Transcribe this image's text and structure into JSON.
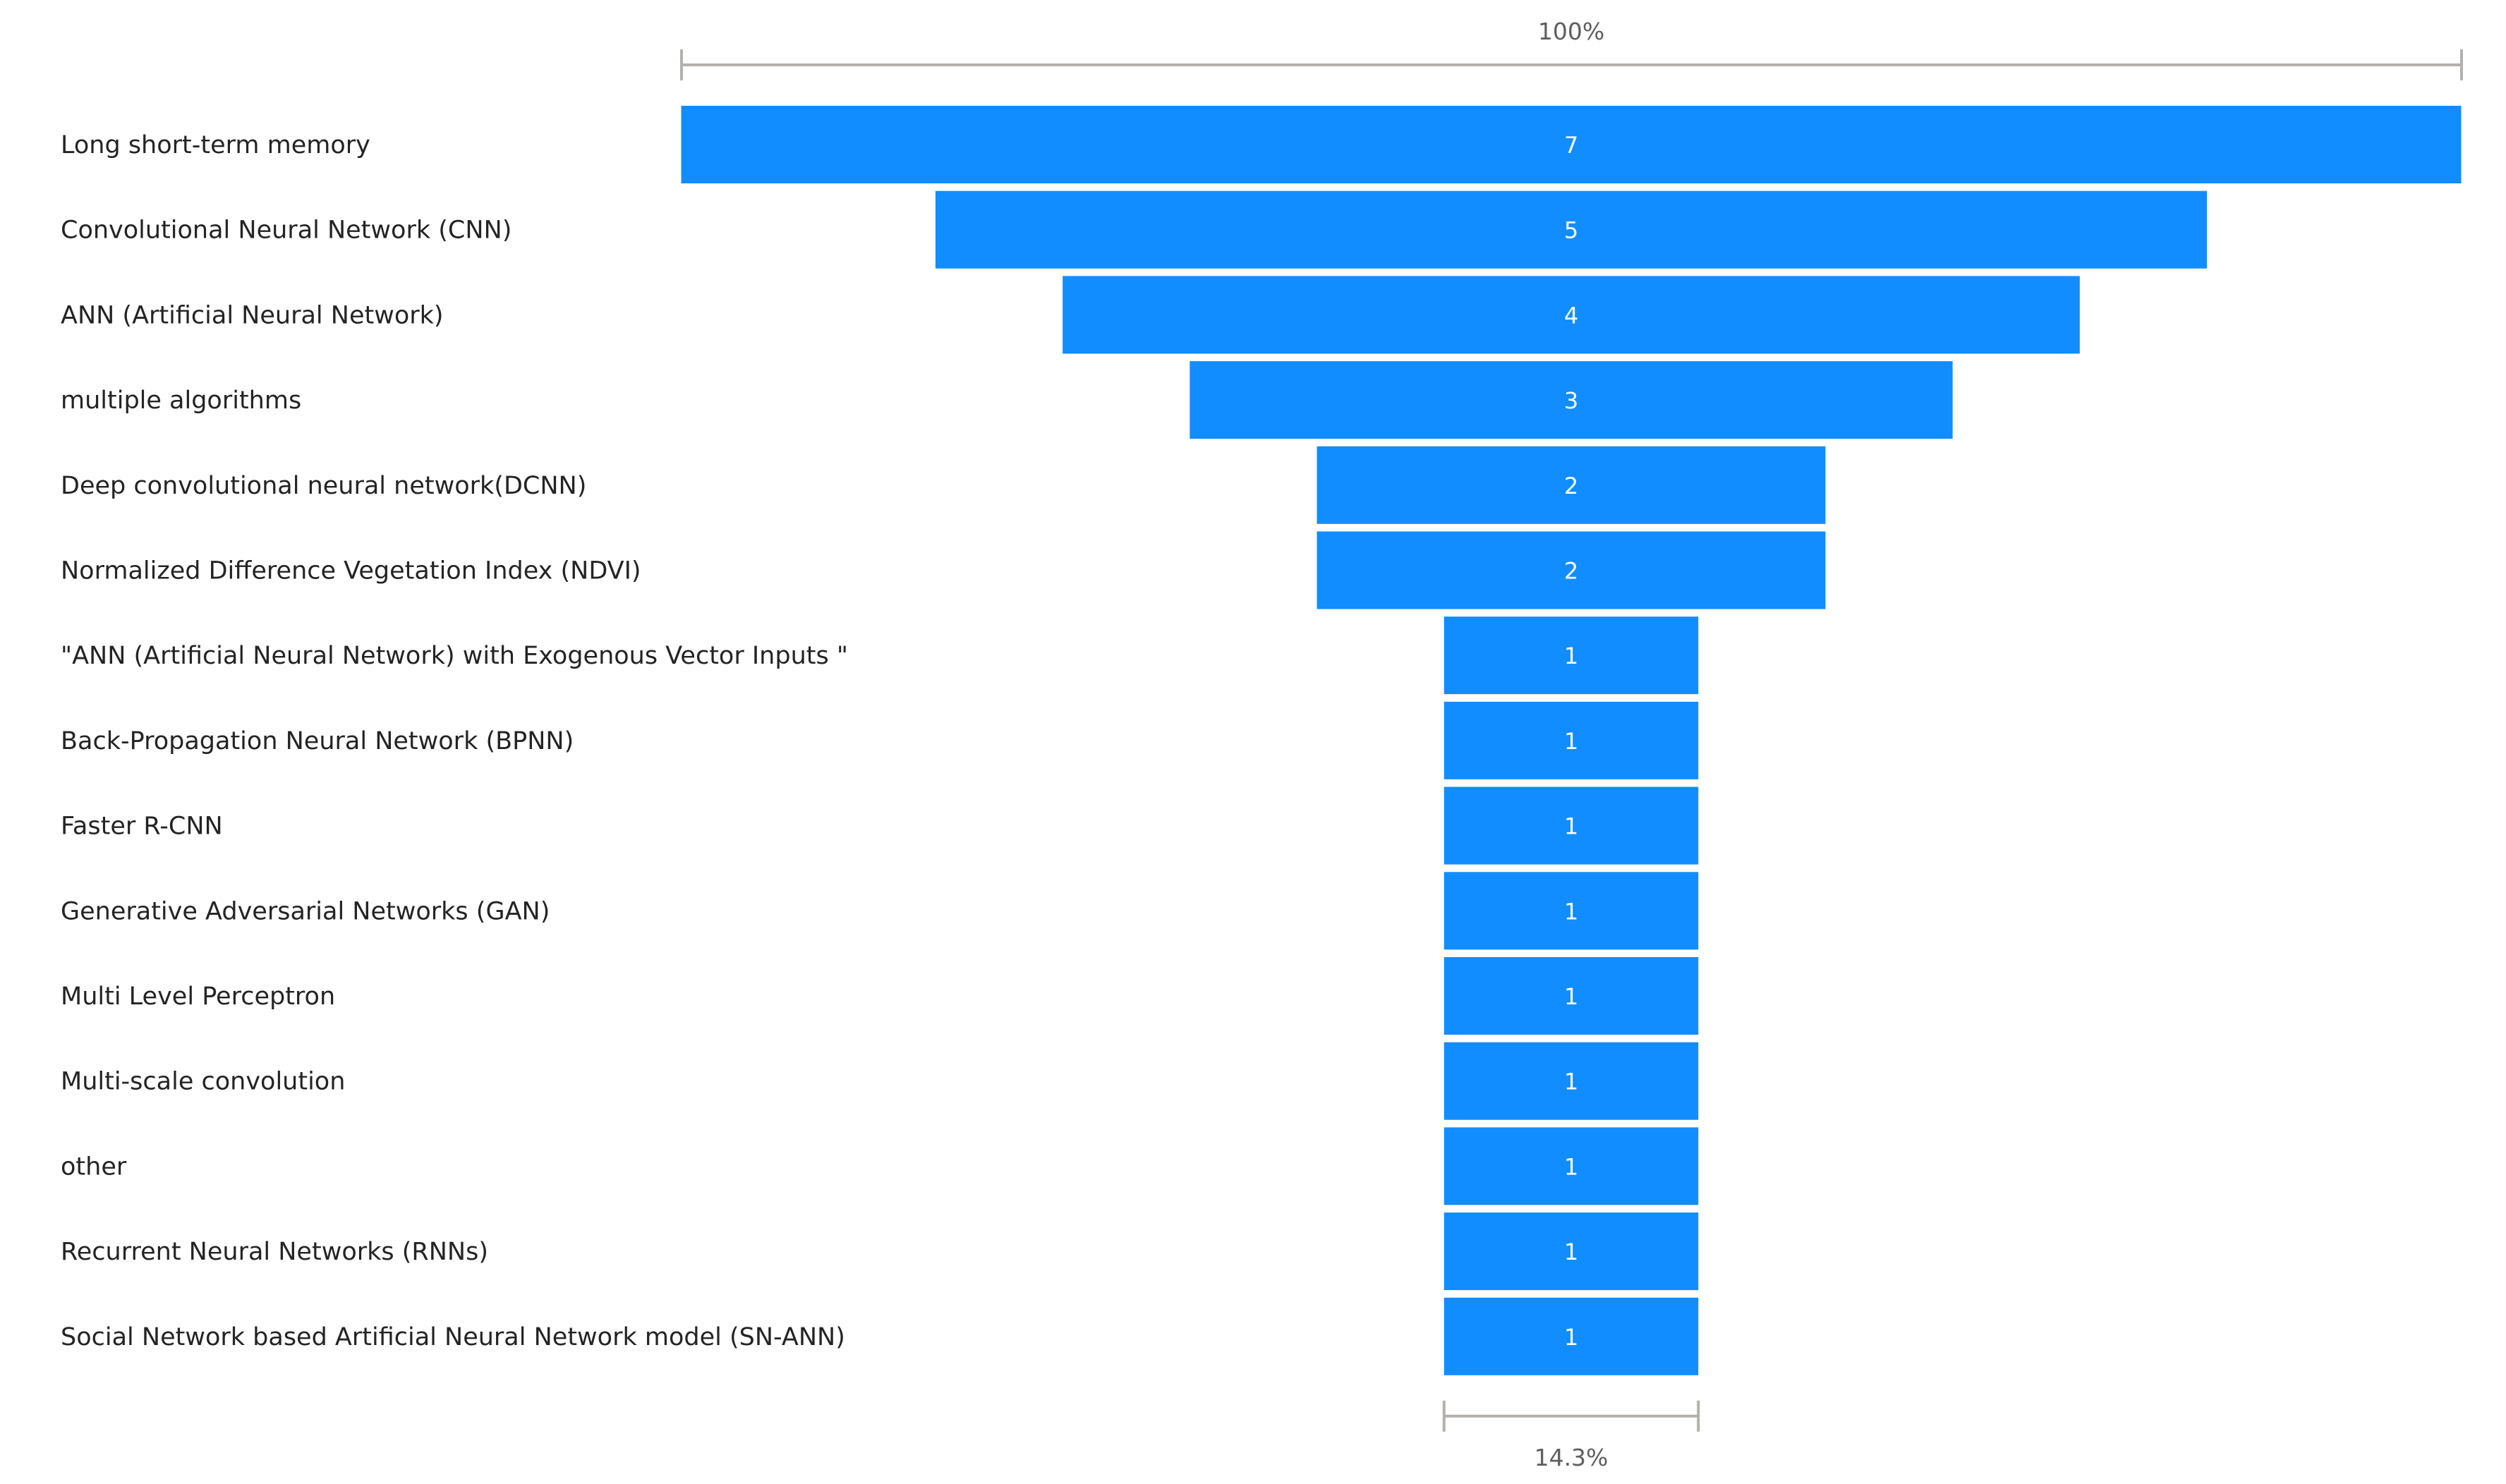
{
  "chart_data": {
    "type": "funnel",
    "categories": [
      "Long short-term memory",
      "Convolutional Neural Network (CNN)",
      "ANN (Artificial Neural Network)",
      "multiple algorithms",
      "Deep convolutional neural network(DCNN)",
      "Normalized Difference Vegetation Index (NDVI)",
      "\"ANN (Artificial Neural Network) with Exogenous Vector Inputs \"",
      "Back-Propagation Neural Network (BPNN)",
      "Faster R-CNN",
      "Generative Adversarial Networks (GAN)",
      "Multi Level Perceptron",
      "Multi-scale convolution",
      "other",
      "Recurrent Neural Networks (RNNs)",
      "Social Network based Artificial Neural Network model (SN-ANN)"
    ],
    "values": [
      7,
      5,
      4,
      3,
      2,
      2,
      1,
      1,
      1,
      1,
      1,
      1,
      1,
      1,
      1
    ],
    "top_percent_label": "100%",
    "bottom_percent_label": "14.3%",
    "bar_color": "#118dff"
  }
}
